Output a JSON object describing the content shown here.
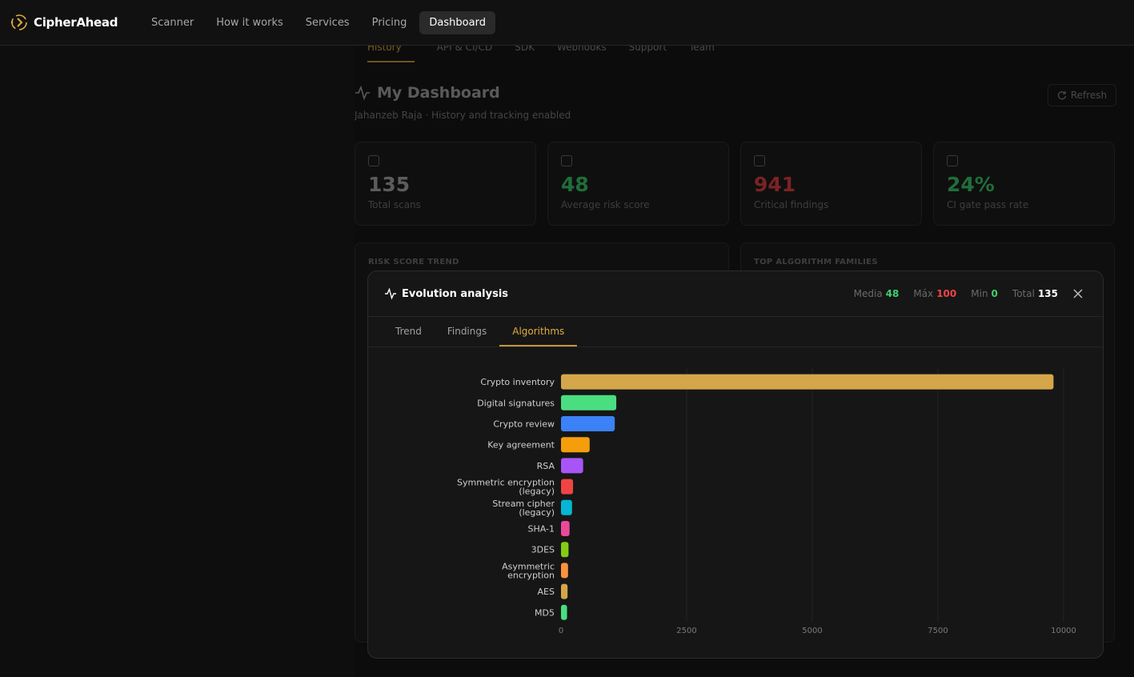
{
  "app": {
    "name": "CipherAhead"
  },
  "nav": {
    "items": [
      {
        "label": "Scanner",
        "active": false
      },
      {
        "label": "How it works",
        "active": false
      },
      {
        "label": "Services",
        "active": false
      },
      {
        "label": "Pricing",
        "active": false
      },
      {
        "label": "Dashboard",
        "active": true
      }
    ]
  },
  "background": {
    "tabs": [
      "History",
      "API & CI/CD",
      "SDK",
      "Webhooks",
      "Support",
      "Team"
    ],
    "title": "My Dashboard",
    "subtitle": "Jahanzeb Raja · History and tracking enabled",
    "refresh_label": "Refresh",
    "cards": [
      {
        "value": "135",
        "label": "Total scans",
        "color": "#5c5c5c"
      },
      {
        "value": "48",
        "label": "Average risk score",
        "color": "#1f6e3a"
      },
      {
        "value": "941",
        "label": "Critical findings",
        "color": "#7a2323"
      },
      {
        "value": "24%",
        "label": "CI gate pass rate",
        "color": "#1f6e3a"
      }
    ],
    "panels": [
      {
        "label": "RISK SCORE TREND"
      },
      {
        "label": "TOP ALGORITHM FAMILIES"
      }
    ]
  },
  "modal": {
    "title": "Evolution analysis",
    "stats": [
      {
        "label": "Media",
        "value": "48",
        "color": "#3ecf6e"
      },
      {
        "label": "Máx",
        "value": "100",
        "color": "#ef4444"
      },
      {
        "label": "Min",
        "value": "0",
        "color": "#3ecf6e"
      },
      {
        "label": "Total",
        "value": "135",
        "color": "#ffffff"
      }
    ],
    "tabs": [
      {
        "label": "Trend",
        "active": false
      },
      {
        "label": "Findings",
        "active": false
      },
      {
        "label": "Algorithms",
        "active": true
      }
    ]
  },
  "chart_data": {
    "type": "bar",
    "orientation": "horizontal",
    "categories": [
      "Crypto inventory",
      "Digital signatures",
      "Crypto review",
      "Key agreement",
      "RSA",
      "Symmetric encryption (legacy)",
      "Stream cipher (legacy)",
      "SHA-1",
      "3DES",
      "Asymmetric encryption",
      "AES",
      "MD5"
    ],
    "category_lines": [
      [
        "Crypto inventory"
      ],
      [
        "Digital signatures"
      ],
      [
        "Crypto review"
      ],
      [
        "Key agreement"
      ],
      [
        "RSA"
      ],
      [
        "Symmetric encryption",
        "(legacy)"
      ],
      [
        "Stream cipher",
        "(legacy)"
      ],
      [
        "SHA-1"
      ],
      [
        "3DES"
      ],
      [
        "Asymmetric",
        "encryption"
      ],
      [
        "AES"
      ],
      [
        "MD5"
      ]
    ],
    "values": [
      9800,
      1100,
      1070,
      570,
      440,
      240,
      220,
      170,
      150,
      140,
      130,
      120
    ],
    "colors": [
      "#d4a64a",
      "#4ade80",
      "#3b82f6",
      "#f59e0b",
      "#a855f7",
      "#ef4444",
      "#06b6d4",
      "#ec4899",
      "#84cc16",
      "#fb923c",
      "#d4a64a",
      "#4ade80"
    ],
    "xlim": [
      0,
      10000
    ],
    "xticks": [
      0,
      2500,
      5000,
      7500,
      10000
    ],
    "grid": true
  }
}
